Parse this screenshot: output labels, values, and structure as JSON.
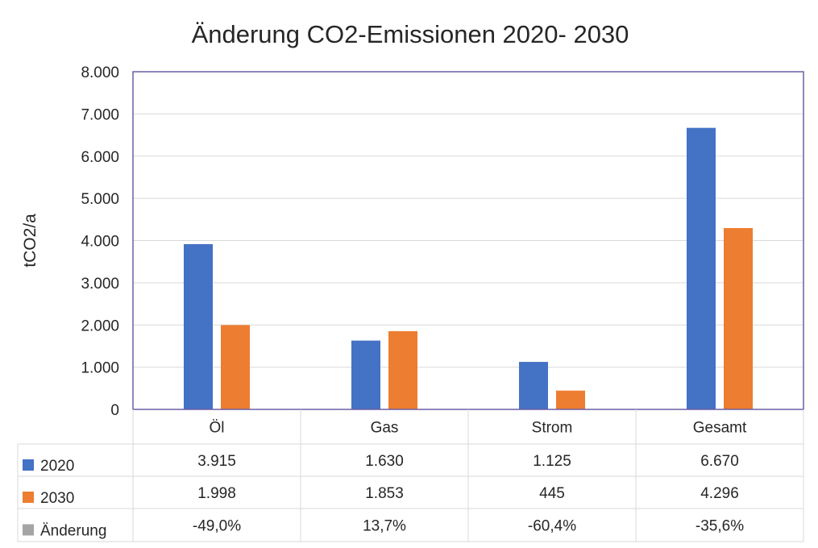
{
  "chart_data": {
    "type": "bar",
    "title": "Änderung CO2-Emissionen 2020- 2030",
    "ylabel": "tCO2/a",
    "xlabel": "",
    "ylim": [
      0,
      8000
    ],
    "yticks": [
      "0",
      "1.000",
      "2.000",
      "3.000",
      "4.000",
      "5.000",
      "6.000",
      "7.000",
      "8.000"
    ],
    "grid": true,
    "categories": [
      "Öl",
      "Gas",
      "Strom",
      "Gesamt"
    ],
    "series": [
      {
        "name": "2020",
        "color": "#4472C4",
        "values": [
          3915,
          1630,
          1125,
          6670
        ],
        "labels": [
          "3.915",
          "1.630",
          "1.125",
          "6.670"
        ]
      },
      {
        "name": "2030",
        "color": "#ED7D31",
        "values": [
          1998,
          1853,
          445,
          4296
        ],
        "labels": [
          "1.998",
          "1.853",
          "445",
          "4.296"
        ]
      },
      {
        "name": "Änderung",
        "color": "#A5A5A5",
        "values": [
          -49.0,
          13.7,
          -60.4,
          -35.6
        ],
        "labels": [
          "-49,0%",
          "13,7%",
          "-60,4%",
          "-35,6%"
        ],
        "plotted": false
      }
    ],
    "data_table": true
  }
}
